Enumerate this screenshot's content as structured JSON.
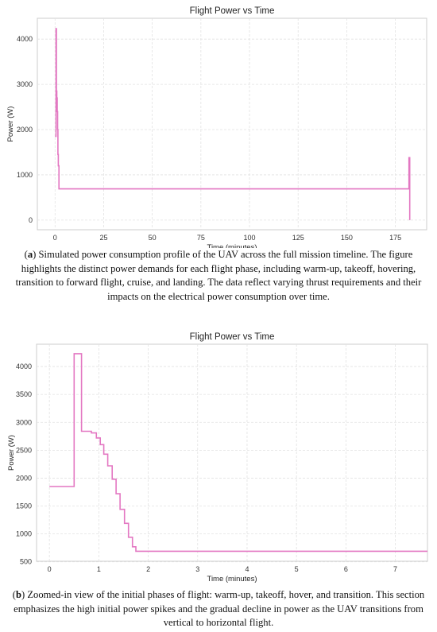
{
  "colors": {
    "series": "#e377c2"
  },
  "chart_data": [
    {
      "type": "line",
      "title": "Flight Power vs Time",
      "xlabel": "Time (minutes)",
      "ylabel": "Power (W)",
      "xlim": [
        -9.1,
        191.1
      ],
      "ylim": [
        -213,
        4460
      ],
      "xticks": [
        0,
        25,
        50,
        75,
        100,
        125,
        150,
        175
      ],
      "yticks": [
        0,
        1000,
        2000,
        3000,
        4000
      ],
      "grid": true,
      "series": [
        {
          "x": [
            0,
            0.5,
            0.5,
            0.7,
            0.7,
            0.9,
            0.9,
            1.1,
            1.1,
            1.3,
            1.3,
            1.5,
            1.5,
            1.7,
            1.7,
            2,
            2,
            182,
            182,
            182.4,
            182.4
          ],
          "y": [
            1850,
            1850,
            4230,
            4230,
            2850,
            2850,
            2700,
            2700,
            2400,
            2400,
            2000,
            2000,
            1450,
            1450,
            1200,
            1200,
            690,
            690,
            1380,
            1380,
            0
          ]
        }
      ]
    },
    {
      "type": "line",
      "title": "Flight Power vs Time",
      "xlabel": "Time (minutes)",
      "ylabel": "Power (W)",
      "xlim": [
        -0.26,
        7.65
      ],
      "ylim": [
        510,
        4400
      ],
      "xticks": [
        0,
        1,
        2,
        3,
        4,
        5,
        6,
        7
      ],
      "yticks": [
        500,
        1000,
        1500,
        2000,
        2500,
        3000,
        3500,
        4000
      ],
      "grid": true,
      "series": [
        {
          "x": [
            0,
            0.5,
            0.5,
            0.65,
            0.65,
            0.85,
            0.85,
            0.95,
            0.95,
            1.03,
            1.03,
            1.1,
            1.1,
            1.18,
            1.18,
            1.27,
            1.27,
            1.35,
            1.35,
            1.43,
            1.43,
            1.52,
            1.52,
            1.6,
            1.6,
            1.68,
            1.68,
            1.75,
            1.75,
            7.65
          ],
          "y": [
            1850,
            1850,
            4230,
            4230,
            2840,
            2840,
            2810,
            2810,
            2720,
            2720,
            2600,
            2600,
            2430,
            2430,
            2220,
            2220,
            1980,
            1980,
            1720,
            1720,
            1440,
            1440,
            1190,
            1190,
            940,
            940,
            770,
            770,
            690,
            690
          ]
        }
      ]
    }
  ],
  "captions": {
    "a": {
      "label": "a",
      "text": "Simulated power consumption profile of the UAV across the full mission timeline. The figure highlights the distinct power demands for each flight phase, including warm-up, takeoff, hovering, transition to forward flight, cruise, and landing. The data reflect varying thrust requirements and their impacts on the electrical power consumption over time."
    },
    "b": {
      "label": "b",
      "text": "Zoomed-in view of the initial phases of flight: warm-up, takeoff, hover, and transition. This section emphasizes the high initial power spikes and the gradual decline in power as the UAV transitions from vertical to horizontal flight."
    }
  }
}
